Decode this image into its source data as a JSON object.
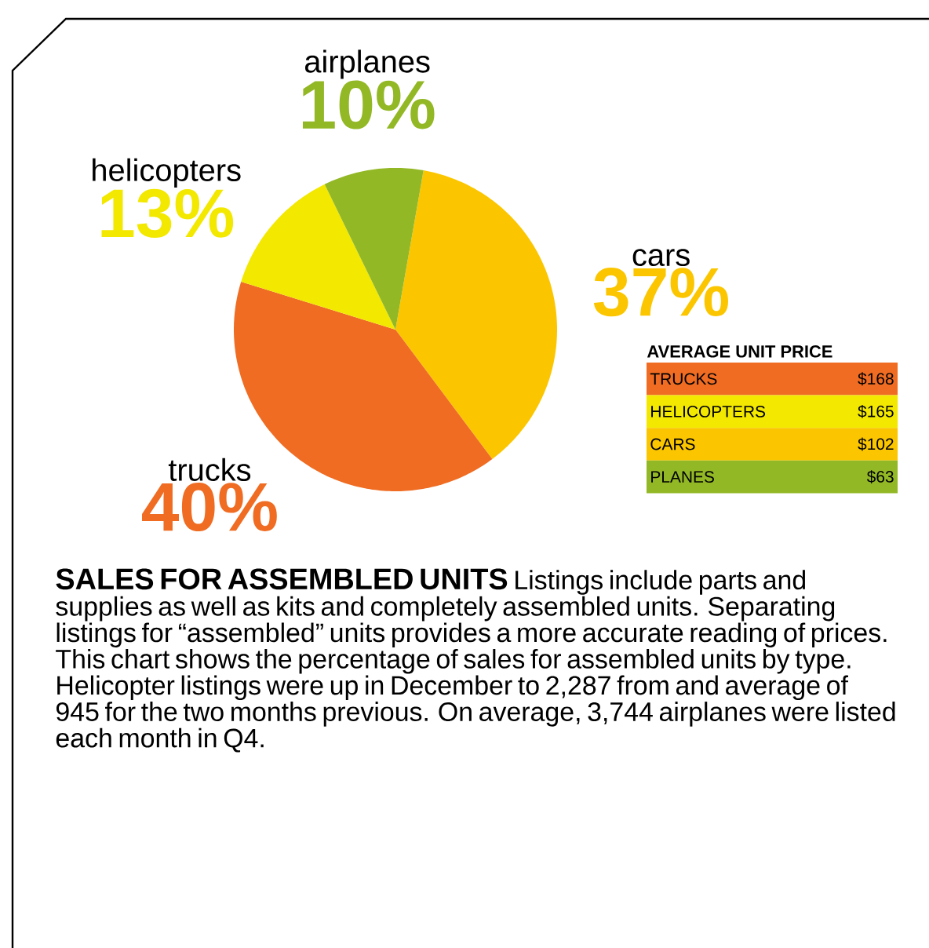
{
  "chart_data": [
    {
      "type": "pie",
      "title": "SALES FOR ASSEMBLED UNITS",
      "annotations": [
        "Listings include parts and supplies as well as kits and completely assembled units. Separating listings for “assembled” units provides a more accurate reading of prices. This chart shows the percentage of sales for assembled  units by type. Helicopter listings were up in December to 2,287 from and average of 945 for the two months previous. On average, 3,744 airplanes were listed each month in Q4."
      ],
      "categories": [
        "cars",
        "trucks",
        "helicopters",
        "airplanes"
      ],
      "values": [
        37,
        40,
        13,
        10
      ],
      "value_labels": [
        "37%",
        "40%",
        "13%",
        "10%"
      ],
      "colors": [
        "#fbc600",
        "#ef6c22",
        "#f3e800",
        "#93b826"
      ]
    },
    {
      "type": "other",
      "title": "AVERAGE UNIT PRICE",
      "categories": [
        "TRUCKS",
        "HELICOPTERS",
        "CARS",
        "PLANES"
      ],
      "value_labels": [
        "$168",
        "$165",
        "$102",
        "$63"
      ],
      "colors": [
        "#ef6c22",
        "#f3e800",
        "#fbc600",
        "#93b826"
      ]
    }
  ]
}
